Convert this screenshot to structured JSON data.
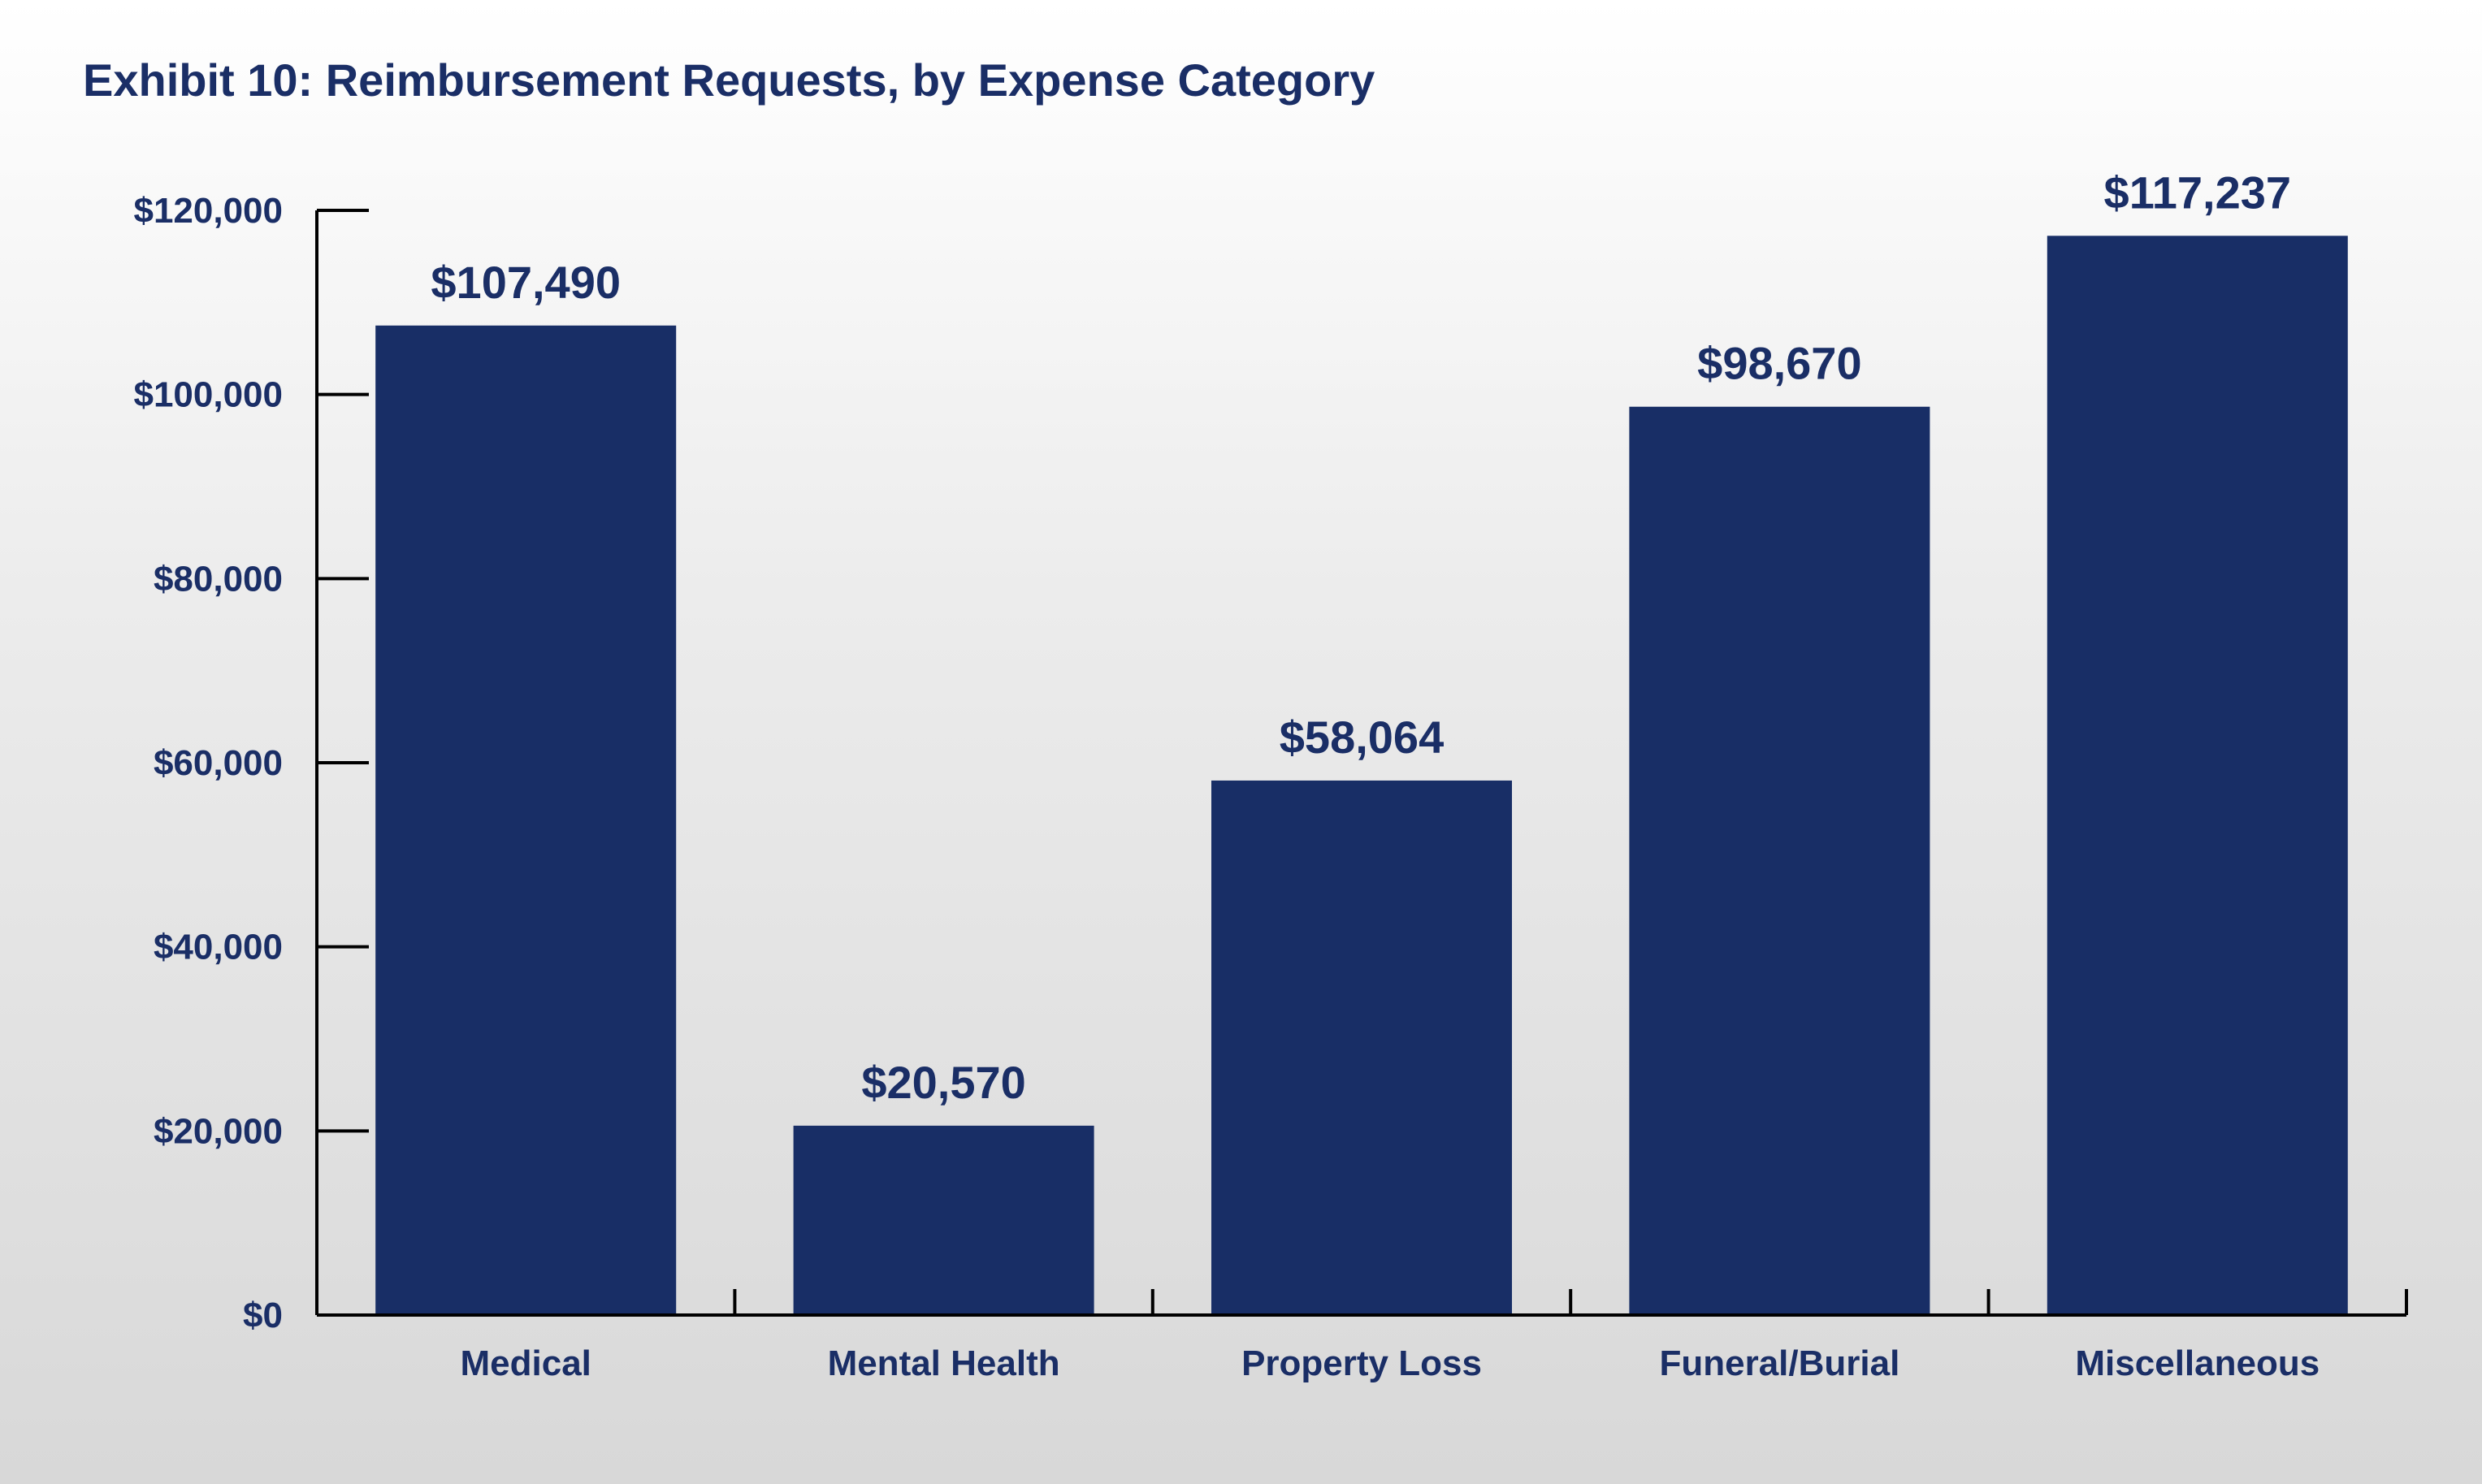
{
  "chart_data": {
    "type": "bar",
    "title": "Exhibit 10: Reimbursement Requests, by Expense Category",
    "categories": [
      "Medical",
      "Mental Health",
      "Property Loss",
      "Funeral/Burial",
      "Miscellaneous"
    ],
    "values": [
      107490,
      20570,
      58064,
      98670,
      117237
    ],
    "value_labels": [
      "$107,490",
      "$20,570",
      "$58,064",
      "$98,670",
      "$117,237"
    ],
    "ylim": [
      0,
      120000
    ],
    "yticks": [
      0,
      20000,
      40000,
      60000,
      80000,
      100000,
      120000
    ],
    "ytick_labels": [
      "$0",
      "$20,000",
      "$40,000",
      "$60,000",
      "$80,000",
      "$100,000",
      "$120,000"
    ],
    "xlabel": "",
    "ylabel": "",
    "grid": false,
    "legend": "none",
    "colors": {
      "bar": "#182e66",
      "text": "#1a2e66",
      "axis": "#000000"
    }
  }
}
